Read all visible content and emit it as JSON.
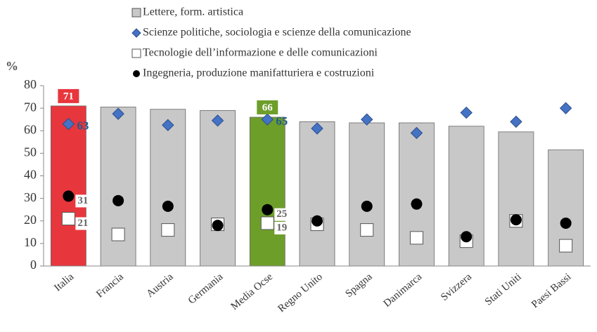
{
  "chart_data": {
    "type": "bar",
    "y_label": "%",
    "categories": [
      "Italia",
      "Francia",
      "Austria",
      "Germania",
      "Media Ocse",
      "Regno Unito",
      "Spagna",
      "Danimarca",
      "Svizzera",
      "Stati Uniti",
      "Paesi Bassi"
    ],
    "series": [
      {
        "name": "Lettere, form. artistica",
        "marker": "bar",
        "color": "#c8c8c8",
        "colors": [
          "#e8363d",
          "#c8c8c8",
          "#c8c8c8",
          "#c8c8c8",
          "#6e9e2a",
          "#c8c8c8",
          "#c8c8c8",
          "#c8c8c8",
          "#c8c8c8",
          "#c8c8c8",
          "#c8c8c8"
        ],
        "values": [
          71,
          70.5,
          69.5,
          69,
          66,
          64,
          63.5,
          63.5,
          62,
          59.5,
          51.5
        ],
        "value_labels": [
          "71",
          null,
          null,
          null,
          "66",
          null,
          null,
          null,
          null,
          null,
          null
        ]
      },
      {
        "name": "Scienze politiche, sociologia e scienze della comunicazione",
        "marker": "diamond",
        "color": "#4472c4",
        "values": [
          63,
          67.5,
          62.5,
          64.5,
          65,
          61,
          65,
          59,
          68,
          64,
          70
        ],
        "value_labels": [
          "63",
          null,
          null,
          null,
          "65",
          null,
          null,
          null,
          null,
          null,
          null
        ]
      },
      {
        "name": "Tecnologie dell’informazione e delle comunicazioni",
        "marker": "square",
        "color": "#ffffff",
        "values": [
          21,
          14,
          16,
          18.5,
          19,
          18.5,
          16,
          12.5,
          11,
          20,
          9
        ],
        "value_labels": [
          "21",
          null,
          null,
          null,
          "19",
          null,
          null,
          null,
          null,
          null,
          null
        ]
      },
      {
        "name": "Ingegneria, produzione manifatturiera e costruzioni",
        "marker": "circle",
        "color": "#000000",
        "values": [
          31,
          29,
          26.5,
          18,
          25,
          20,
          26.5,
          27.5,
          13,
          20.5,
          19
        ],
        "value_labels": [
          "31",
          null,
          null,
          null,
          "25",
          null,
          null,
          null,
          null,
          null,
          null
        ]
      }
    ],
    "ylim": [
      0,
      80
    ],
    "yticks": [
      0,
      10,
      20,
      30,
      40,
      50,
      60,
      70,
      80
    ],
    "grid": false
  }
}
